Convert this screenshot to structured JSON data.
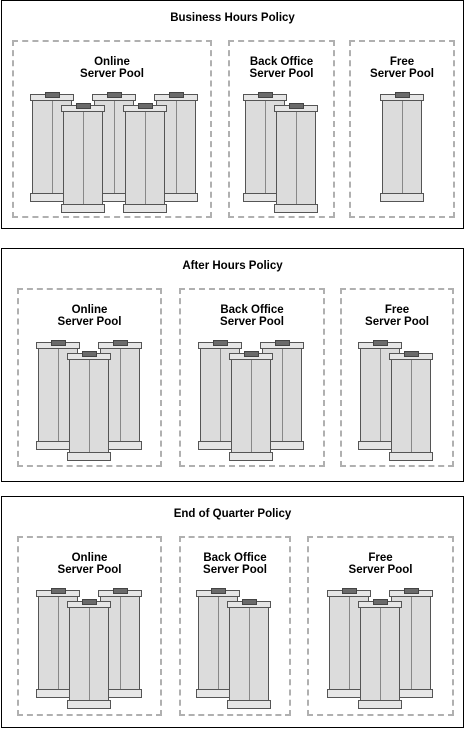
{
  "policies": [
    {
      "title": "Business Hours Policy",
      "pools": [
        {
          "line1": "Online",
          "line2": "Server Pool"
        },
        {
          "line1": "Back Office",
          "line2": "Server Pool"
        },
        {
          "line1": "Free",
          "line2": "Server Pool"
        }
      ]
    },
    {
      "title": "After Hours Policy",
      "pools": [
        {
          "line1": "Online",
          "line2": "Server Pool"
        },
        {
          "line1": "Back Office",
          "line2": "Server Pool"
        },
        {
          "line1": "Free",
          "line2": "Server Pool"
        }
      ]
    },
    {
      "title": "End of Quarter Policy",
      "pools": [
        {
          "line1": "Online",
          "line2": "Server Pool"
        },
        {
          "line1": "Back Office",
          "line2": "Server Pool"
        },
        {
          "line1": "Free",
          "line2": "Server Pool"
        }
      ]
    }
  ],
  "server_counts": [
    [
      5,
      2,
      1
    ],
    [
      3,
      3,
      2
    ],
    [
      3,
      2,
      3
    ]
  ],
  "colors": {
    "server_fill": "#dcdcdc",
    "server_stroke": "#555555",
    "pool_border": "#b0b0b0",
    "panel_border": "#000000"
  }
}
